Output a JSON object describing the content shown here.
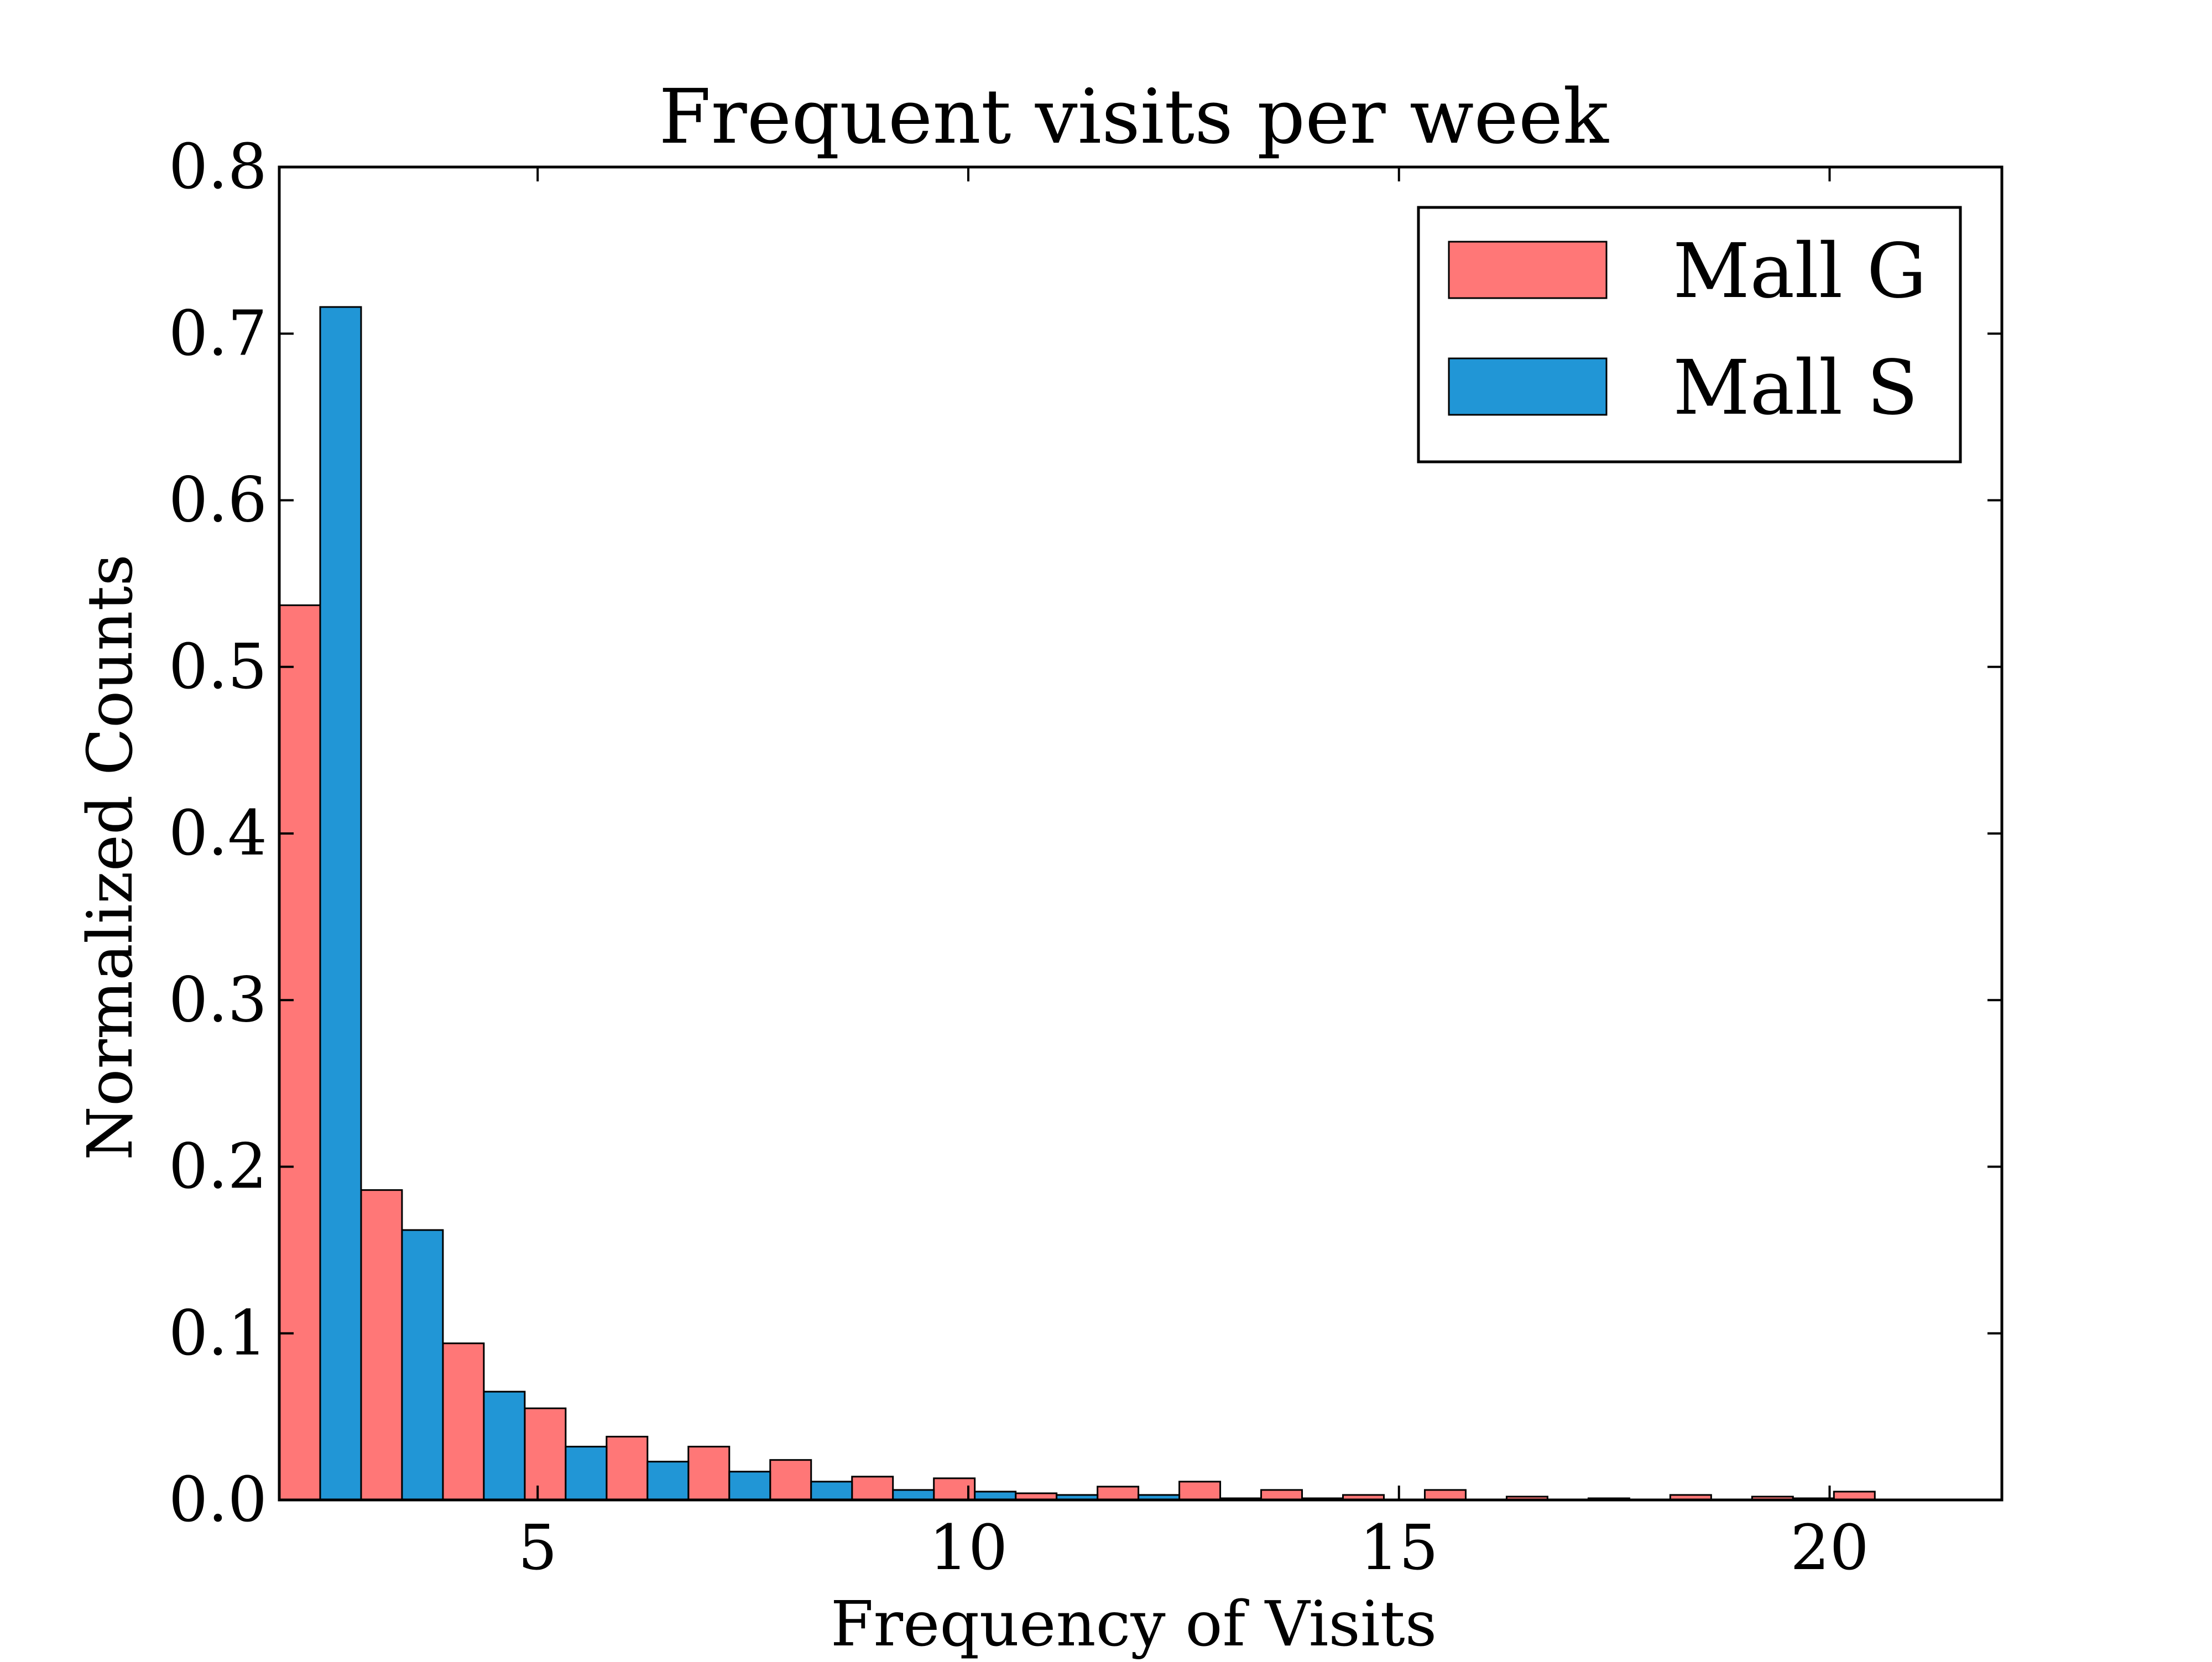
{
  "chart_data": {
    "type": "bar",
    "title": "Frequent visits per week",
    "xlabel": "Frequency of Visits",
    "ylabel": "Normalized Counts",
    "xlim": [
      2,
      22
    ],
    "ylim": [
      0,
      0.8
    ],
    "xticks": [
      5,
      10,
      15,
      20
    ],
    "yticks": [
      0.0,
      0.1,
      0.2,
      0.3,
      0.4,
      0.5,
      0.6,
      0.7,
      0.8
    ],
    "grid": false,
    "legend_position": "top-right",
    "bin_start": 2,
    "bin_width": 0.95,
    "series": [
      {
        "name": "Mall G",
        "color": "#ff7777",
        "values": [
          0.537,
          0.186,
          0.094,
          0.055,
          0.038,
          0.032,
          0.024,
          0.014,
          0.013,
          0.004,
          0.008,
          0.011,
          0.006,
          0.003,
          0.006,
          0.002,
          0.001,
          0.003,
          0.002,
          0.005
        ]
      },
      {
        "name": "Mall S",
        "color": "#2196d6",
        "values": [
          0.716,
          0.162,
          0.065,
          0.032,
          0.023,
          0.017,
          0.011,
          0.006,
          0.005,
          0.003,
          0.003,
          0.001,
          0.001,
          0.0,
          0.0,
          0.0,
          0.0,
          0.0,
          0.001,
          0.0
        ]
      }
    ]
  }
}
